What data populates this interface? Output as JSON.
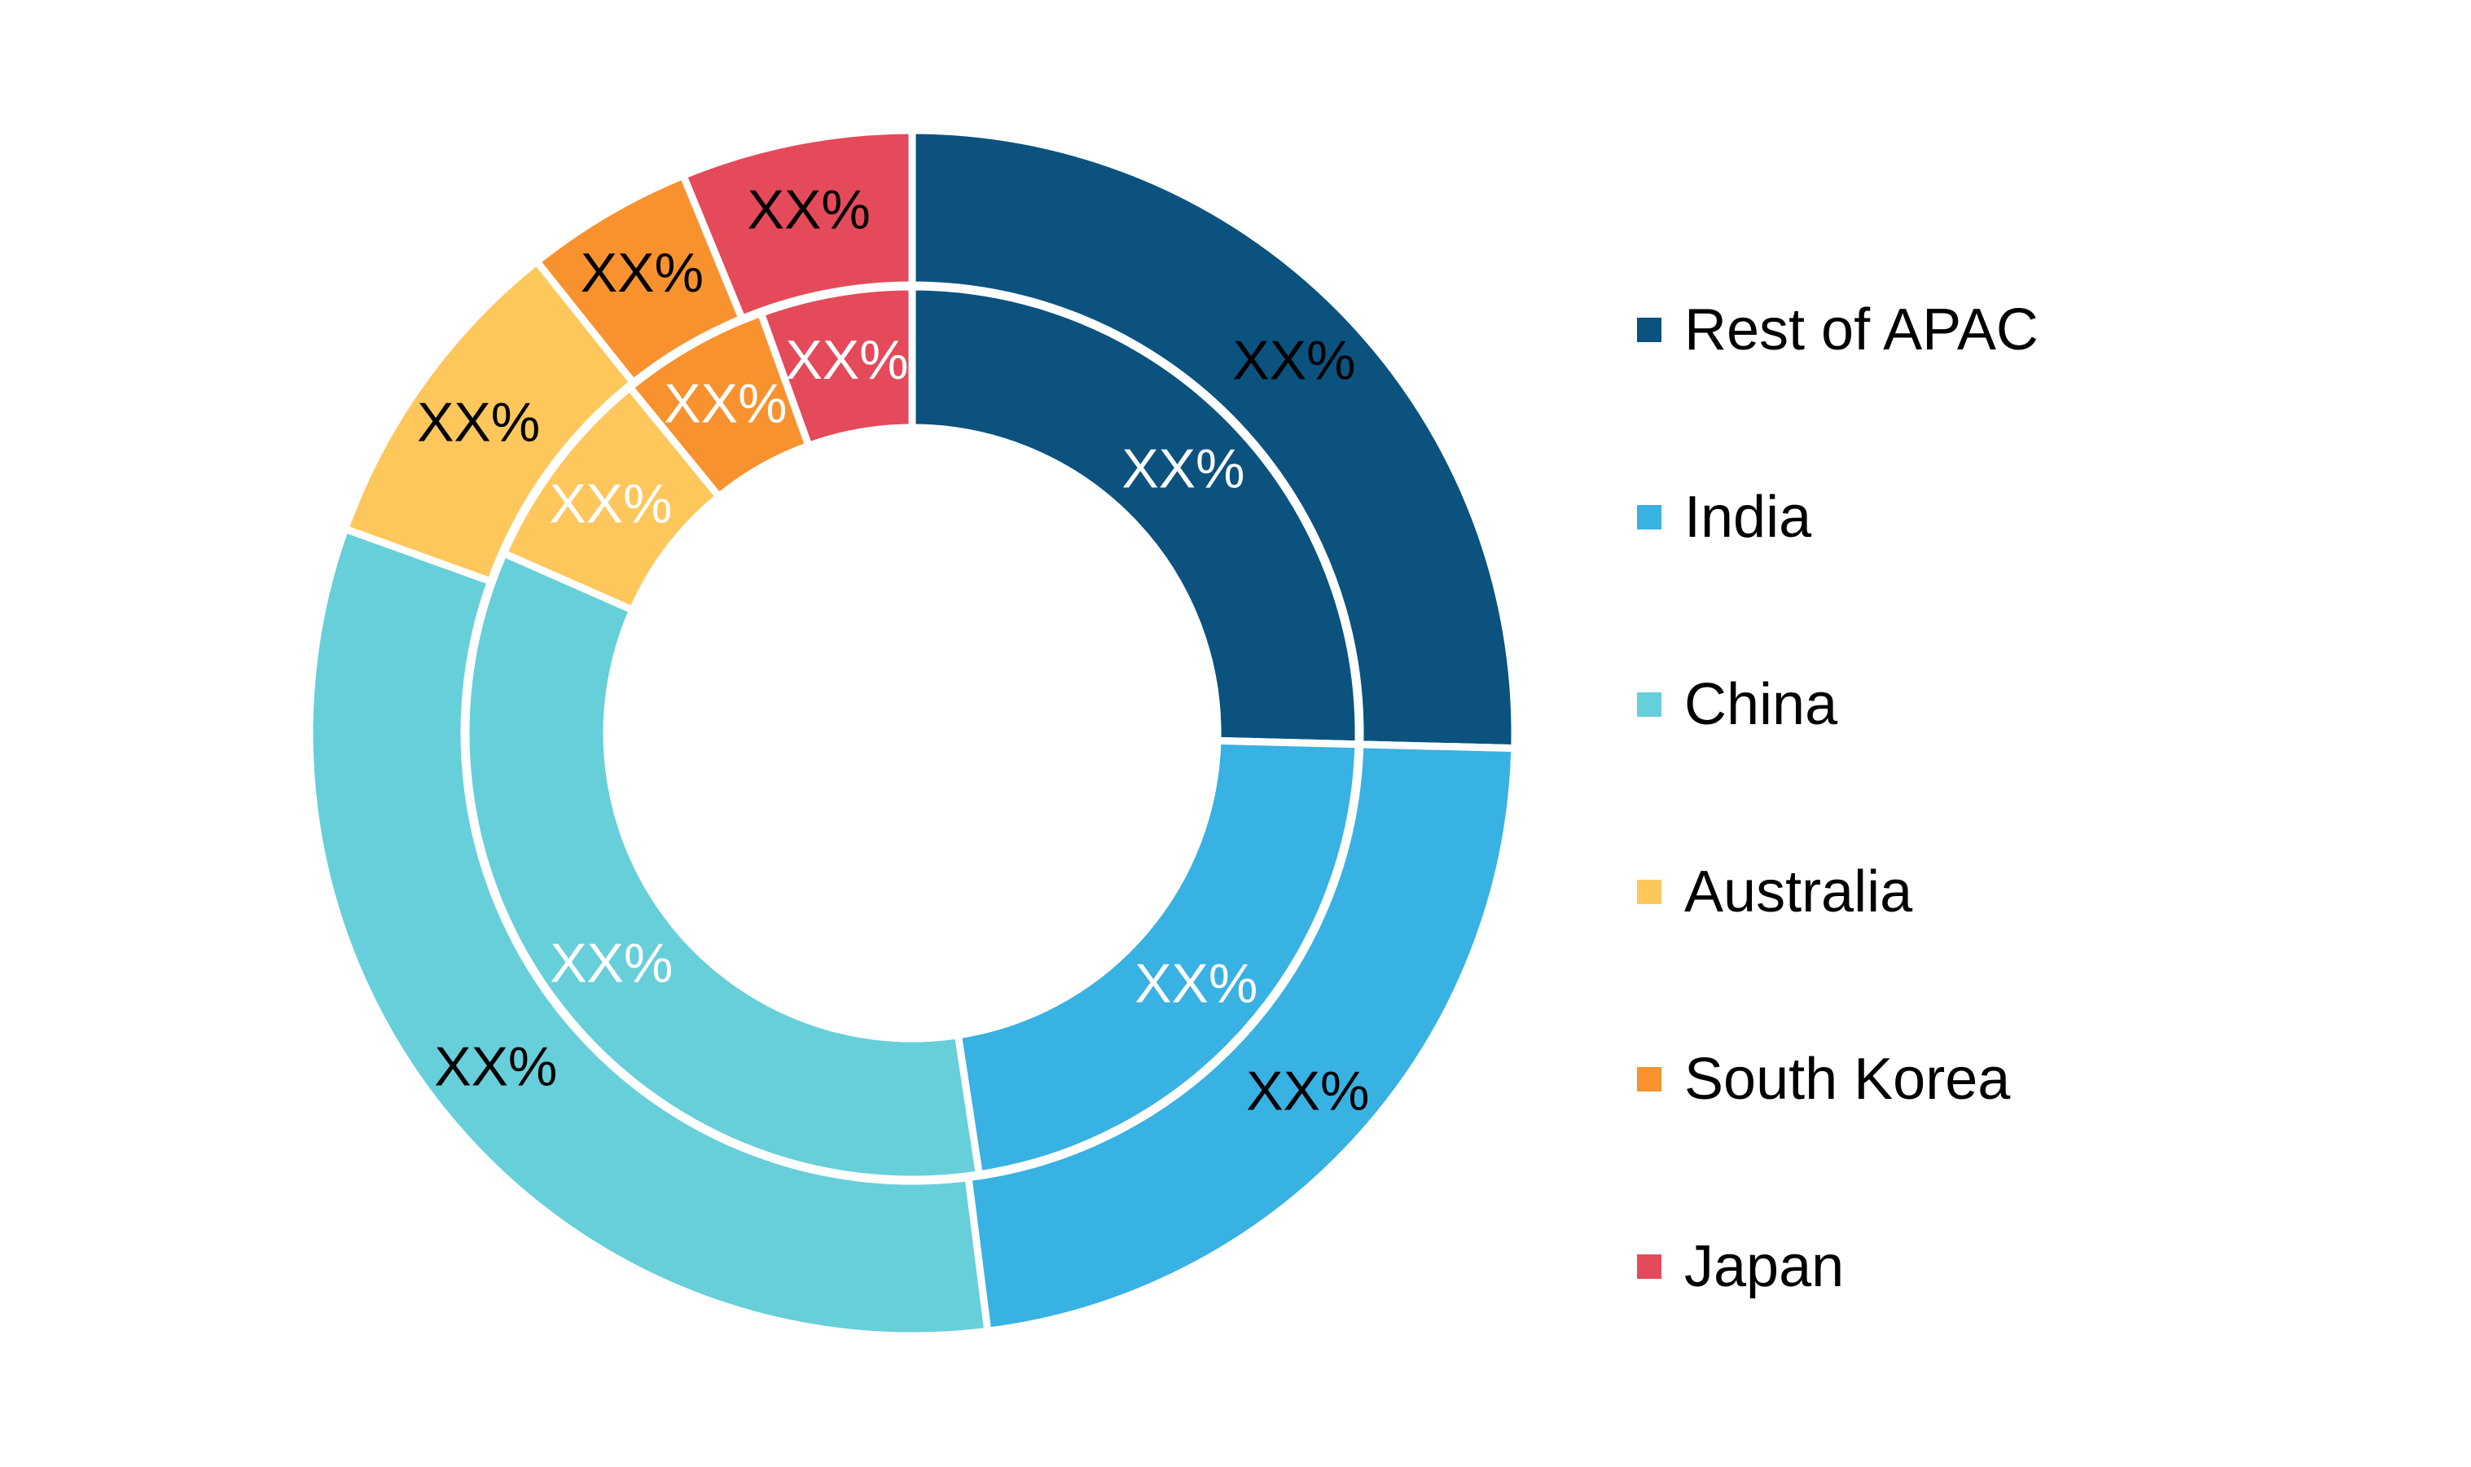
{
  "chart_data": {
    "type": "pie",
    "variant": "nested-donut",
    "legend_position": "right",
    "categories": [
      "Rest of APAC",
      "India",
      "China",
      "Australia",
      "South Korea",
      "Japan"
    ],
    "colors": [
      "#0b527f",
      "#38b1e3",
      "#66cfda",
      "#fec75c",
      "#f7922e",
      "#e44a5a"
    ],
    "series": [
      {
        "ring": "outer",
        "values": [
          25.4,
          22.6,
          32.5,
          8.8,
          4.5,
          6.2
        ],
        "labels": [
          "XX%",
          "XX%",
          "XX%",
          "XX%",
          "XX%",
          "XX%"
        ],
        "label_color": "#000000"
      },
      {
        "ring": "inner",
        "values": [
          25.4,
          22.2,
          34.0,
          7.5,
          5.4,
          5.5
        ],
        "labels": [
          "XX%",
          "XX%",
          "XX%",
          "XX%",
          "XX%",
          "XX%"
        ],
        "label_color": "#ffffff"
      }
    ]
  },
  "legend": {
    "items": [
      {
        "label": "Rest of APAC",
        "color": "#0b527f"
      },
      {
        "label": "India",
        "color": "#38b1e3"
      },
      {
        "label": "China",
        "color": "#66cfda"
      },
      {
        "label": "Australia",
        "color": "#fec75c"
      },
      {
        "label": "South Korea",
        "color": "#f7922e"
      },
      {
        "label": "Japan",
        "color": "#e44a5a"
      }
    ]
  }
}
